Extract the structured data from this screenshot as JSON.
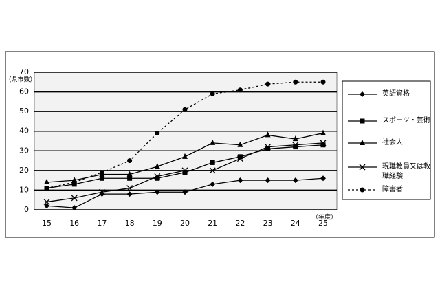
{
  "chart_data": {
    "type": "line",
    "y_label": "（県市数）",
    "x_label": "（年度）",
    "categories": [
      "15",
      "16",
      "17",
      "18",
      "19",
      "20",
      "21",
      "22",
      "23",
      "24",
      "25"
    ],
    "ylim": [
      0,
      70
    ],
    "yticks": [
      0,
      10,
      20,
      30,
      40,
      50,
      60,
      70
    ],
    "grid": true,
    "series": [
      {
        "name": "英語資格",
        "color": "#000000",
        "marker": "diamond",
        "dashed": false,
        "values": [
          2,
          1,
          8,
          8,
          9,
          9,
          13,
          15,
          15,
          15,
          16
        ]
      },
      {
        "name": "スポーツ・芸術",
        "color": "#000000",
        "marker": "square",
        "dashed": false,
        "values": [
          11,
          13,
          16,
          16,
          16,
          19,
          24,
          27,
          31,
          32,
          33
        ]
      },
      {
        "name": "社会人",
        "color": "#000000",
        "marker": "triangle",
        "dashed": false,
        "values": [
          14,
          15,
          18,
          18,
          22,
          27,
          34,
          33,
          38,
          36,
          39
        ]
      },
      {
        "name": "現職教員又は教職経験",
        "color": "#000000",
        "marker": "cross",
        "dashed": false,
        "values": [
          4,
          6,
          9,
          11,
          17,
          20,
          20,
          26,
          32,
          33,
          34
        ]
      },
      {
        "name": "障害者",
        "color": "#000000",
        "marker": "circle",
        "dashed": true,
        "values": [
          11,
          14,
          19,
          25,
          39,
          51,
          59,
          61,
          64,
          65,
          65
        ]
      }
    ]
  }
}
